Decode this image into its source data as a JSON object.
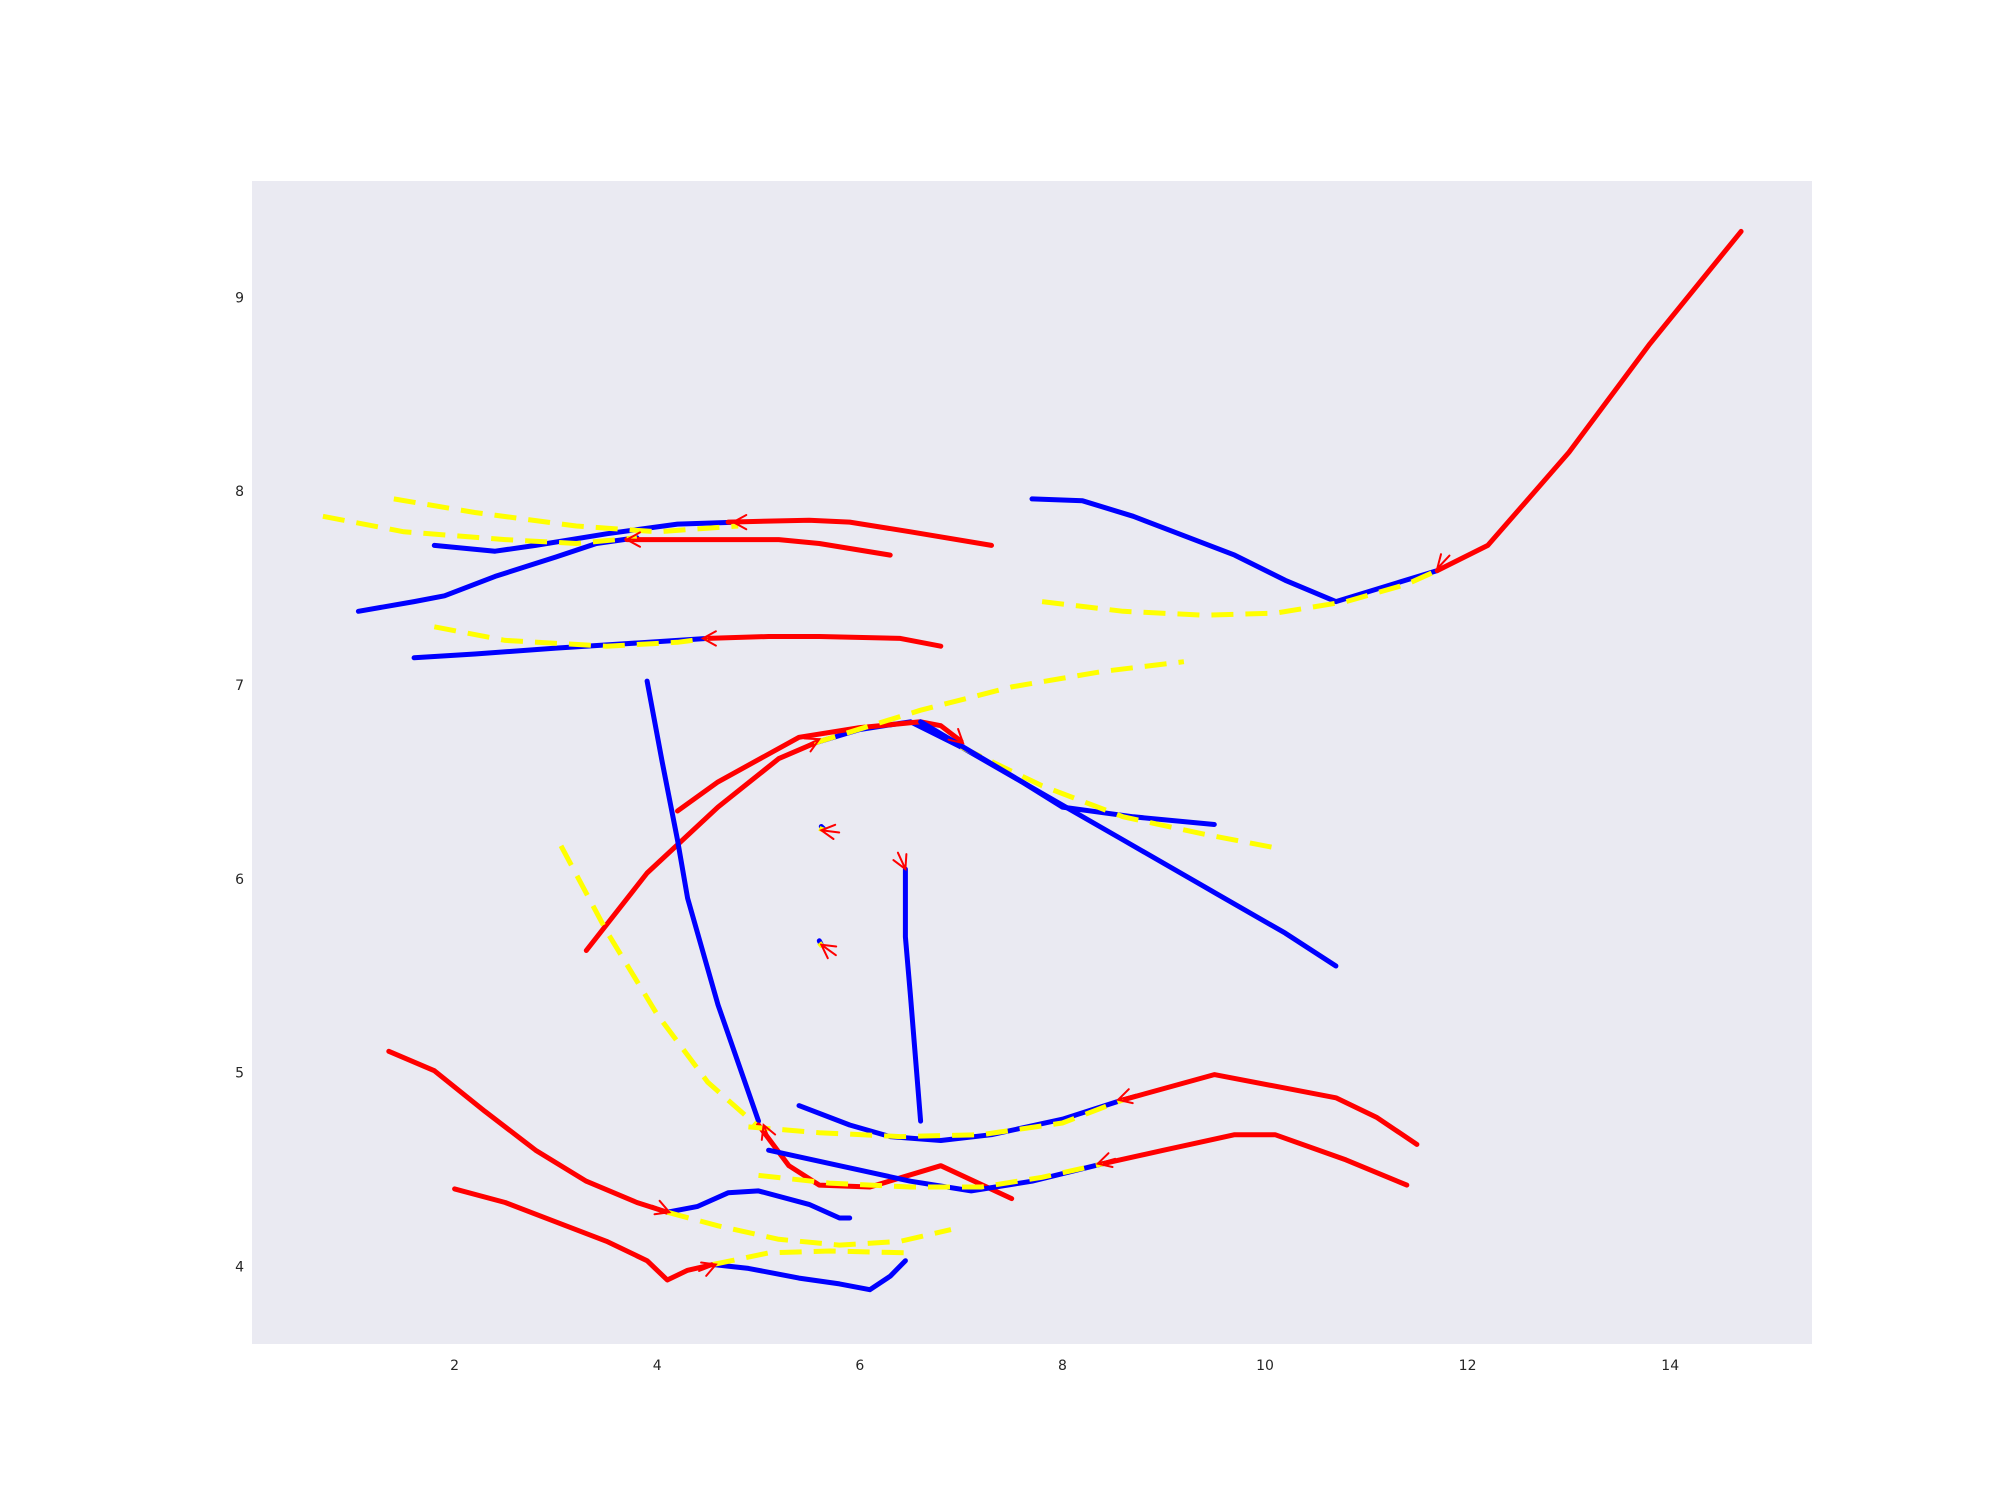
{
  "chart_data": {
    "type": "line",
    "title": "",
    "xlabel": "",
    "ylabel": "",
    "xlim": [
      0.0,
      15.4
    ],
    "ylim": [
      3.6,
      9.6
    ],
    "xticks": [
      2,
      4,
      6,
      8,
      10,
      12,
      14
    ],
    "yticks": [
      4,
      5,
      6,
      7,
      8,
      9
    ],
    "grid": false,
    "legend": "none",
    "colors": {
      "background": "#eaeaf2",
      "observed": "#0000ff",
      "predicted": "#ff0000",
      "candidate": "#ffff00"
    },
    "series": [
      {
        "role": "observed",
        "points": [
          [
            1.8,
            7.72
          ],
          [
            2.4,
            7.69
          ],
          [
            2.8,
            7.72
          ],
          [
            3.5,
            7.78
          ],
          [
            4.2,
            7.83
          ],
          [
            4.8,
            7.84
          ]
        ]
      },
      {
        "role": "predicted",
        "points": [
          [
            4.7,
            7.84
          ],
          [
            5.5,
            7.85
          ],
          [
            5.9,
            7.84
          ],
          [
            6.5,
            7.79
          ],
          [
            7.3,
            7.72
          ]
        ]
      },
      {
        "role": "candidate",
        "points": [
          [
            1.4,
            7.96
          ],
          [
            2.2,
            7.89
          ],
          [
            3.2,
            7.82
          ],
          [
            4.0,
            7.79
          ],
          [
            4.8,
            7.82
          ]
        ]
      },
      {
        "role": "observed",
        "points": [
          [
            1.05,
            7.38
          ],
          [
            1.6,
            7.43
          ],
          [
            1.9,
            7.46
          ],
          [
            2.4,
            7.56
          ],
          [
            3.0,
            7.66
          ],
          [
            3.4,
            7.73
          ],
          [
            3.8,
            7.76
          ]
        ]
      },
      {
        "role": "predicted",
        "points": [
          [
            3.7,
            7.75
          ],
          [
            4.6,
            7.75
          ],
          [
            5.2,
            7.75
          ],
          [
            5.6,
            7.73
          ],
          [
            6.3,
            7.67
          ]
        ]
      },
      {
        "role": "candidate",
        "points": [
          [
            0.7,
            7.87
          ],
          [
            1.5,
            7.79
          ],
          [
            2.5,
            7.75
          ],
          [
            3.2,
            7.73
          ],
          [
            3.8,
            7.76
          ]
        ]
      },
      {
        "role": "observed",
        "points": [
          [
            1.6,
            7.14
          ],
          [
            2.2,
            7.16
          ],
          [
            3.0,
            7.19
          ],
          [
            3.6,
            7.21
          ],
          [
            4.2,
            7.23
          ],
          [
            4.5,
            7.24
          ]
        ]
      },
      {
        "role": "predicted",
        "points": [
          [
            4.5,
            7.24
          ],
          [
            5.1,
            7.25
          ],
          [
            5.6,
            7.25
          ],
          [
            6.4,
            7.24
          ],
          [
            6.8,
            7.2
          ]
        ]
      },
      {
        "role": "candidate",
        "points": [
          [
            1.8,
            7.3
          ],
          [
            2.5,
            7.23
          ],
          [
            3.5,
            7.2
          ],
          [
            4.2,
            7.22
          ],
          [
            4.5,
            7.24
          ]
        ]
      },
      {
        "role": "observed",
        "points": [
          [
            7.7,
            7.96
          ],
          [
            8.2,
            7.95
          ],
          [
            8.7,
            7.87
          ],
          [
            9.2,
            7.77
          ],
          [
            9.7,
            7.67
          ],
          [
            10.2,
            7.54
          ],
          [
            10.7,
            7.43
          ],
          [
            11.2,
            7.51
          ],
          [
            11.7,
            7.59
          ]
        ]
      },
      {
        "role": "predicted",
        "points": [
          [
            11.7,
            7.59
          ],
          [
            12.2,
            7.72
          ],
          [
            13.0,
            8.2
          ],
          [
            13.8,
            8.76
          ],
          [
            14.7,
            9.34
          ]
        ]
      },
      {
        "role": "candidate",
        "points": [
          [
            7.8,
            7.43
          ],
          [
            8.6,
            7.38
          ],
          [
            9.4,
            7.36
          ],
          [
            10.1,
            7.37
          ],
          [
            10.8,
            7.43
          ],
          [
            11.4,
            7.52
          ],
          [
            11.7,
            7.59
          ]
        ]
      },
      {
        "role": "observed",
        "points": [
          [
            5.55,
            6.7
          ],
          [
            6.0,
            6.77
          ],
          [
            6.5,
            6.81
          ],
          [
            7.0,
            6.68
          ]
        ]
      },
      {
        "role": "predicted",
        "points": [
          [
            4.2,
            6.35
          ],
          [
            4.6,
            6.5
          ],
          [
            5.4,
            6.73
          ],
          [
            6.0,
            6.78
          ],
          [
            6.6,
            6.81
          ],
          [
            6.8,
            6.79
          ],
          [
            7.0,
            6.71
          ]
        ]
      },
      {
        "role": "predicted",
        "points": [
          [
            3.3,
            5.63
          ],
          [
            3.9,
            6.03
          ],
          [
            4.6,
            6.37
          ],
          [
            5.2,
            6.62
          ],
          [
            5.6,
            6.71
          ]
        ]
      },
      {
        "role": "candidate",
        "points": [
          [
            5.55,
            6.7
          ],
          [
            6.6,
            6.87
          ],
          [
            7.5,
            6.99
          ],
          [
            8.4,
            7.07
          ],
          [
            9.2,
            7.12
          ]
        ]
      },
      {
        "role": "observed",
        "points": [
          [
            7.0,
            6.68
          ],
          [
            7.6,
            6.5
          ],
          [
            8.0,
            6.37
          ],
          [
            8.7,
            6.32
          ],
          [
            9.5,
            6.28
          ]
        ]
      },
      {
        "role": "candidate",
        "points": [
          [
            7.0,
            6.68
          ],
          [
            7.8,
            6.48
          ],
          [
            8.6,
            6.32
          ],
          [
            9.4,
            6.23
          ],
          [
            10.1,
            6.16
          ]
        ]
      },
      {
        "role": "observed",
        "points": [
          [
            6.6,
            6.81
          ],
          [
            7.7,
            6.47
          ],
          [
            8.6,
            6.2
          ],
          [
            9.5,
            5.93
          ],
          [
            10.2,
            5.72
          ],
          [
            10.7,
            5.55
          ]
        ]
      },
      {
        "role": "observed",
        "points": [
          [
            3.9,
            7.02
          ],
          [
            4.05,
            6.6
          ],
          [
            4.2,
            6.2
          ],
          [
            4.3,
            5.9
          ],
          [
            4.6,
            5.35
          ],
          [
            5.0,
            4.75
          ]
        ]
      },
      {
        "role": "candidate",
        "points": [
          [
            3.05,
            6.17
          ],
          [
            3.5,
            5.73
          ],
          [
            4.0,
            5.3
          ],
          [
            4.5,
            4.95
          ],
          [
            5.0,
            4.72
          ]
        ]
      },
      {
        "role": "predicted",
        "points": [
          [
            5.0,
            4.73
          ],
          [
            5.3,
            4.52
          ],
          [
            5.6,
            4.42
          ],
          [
            6.1,
            4.41
          ],
          [
            6.8,
            4.52
          ],
          [
            7.5,
            4.35
          ]
        ]
      },
      {
        "role": "observed",
        "points": [
          [
            6.6,
            4.75
          ],
          [
            6.5,
            5.4
          ],
          [
            6.45,
            5.7
          ],
          [
            6.45,
            6.05
          ]
        ]
      },
      {
        "role": "observed",
        "points": [
          [
            5.4,
            4.83
          ],
          [
            5.9,
            4.73
          ],
          [
            6.3,
            4.67
          ],
          [
            6.8,
            4.65
          ],
          [
            7.3,
            4.68
          ],
          [
            8.0,
            4.76
          ],
          [
            8.6,
            4.86
          ]
        ]
      },
      {
        "role": "predicted",
        "points": [
          [
            8.6,
            4.86
          ],
          [
            9.5,
            4.99
          ],
          [
            10.2,
            4.92
          ],
          [
            10.7,
            4.87
          ],
          [
            11.1,
            4.77
          ],
          [
            11.5,
            4.63
          ]
        ]
      },
      {
        "role": "candidate",
        "points": [
          [
            4.9,
            4.72
          ],
          [
            5.6,
            4.69
          ],
          [
            6.4,
            4.67
          ],
          [
            7.2,
            4.68
          ],
          [
            8.0,
            4.74
          ],
          [
            8.6,
            4.86
          ]
        ]
      },
      {
        "role": "observed",
        "points": [
          [
            5.1,
            4.6
          ],
          [
            5.8,
            4.52
          ],
          [
            6.5,
            4.44
          ],
          [
            7.1,
            4.39
          ],
          [
            7.7,
            4.44
          ],
          [
            8.4,
            4.53
          ]
        ]
      },
      {
        "role": "predicted",
        "points": [
          [
            8.4,
            4.53
          ],
          [
            9.0,
            4.6
          ],
          [
            9.7,
            4.68
          ],
          [
            10.1,
            4.68
          ],
          [
            10.8,
            4.55
          ],
          [
            11.4,
            4.42
          ]
        ]
      },
      {
        "role": "candidate",
        "points": [
          [
            5.0,
            4.47
          ],
          [
            5.7,
            4.43
          ],
          [
            6.5,
            4.41
          ],
          [
            7.2,
            4.41
          ],
          [
            7.8,
            4.46
          ],
          [
            8.4,
            4.53
          ]
        ]
      },
      {
        "role": "observed",
        "points": [
          [
            4.1,
            4.28
          ],
          [
            4.4,
            4.31
          ],
          [
            4.7,
            4.38
          ],
          [
            5.0,
            4.39
          ],
          [
            5.5,
            4.32
          ],
          [
            5.8,
            4.25
          ],
          [
            5.9,
            4.25
          ]
        ]
      },
      {
        "role": "predicted",
        "points": [
          [
            1.35,
            5.11
          ],
          [
            1.8,
            5.01
          ],
          [
            2.3,
            4.8
          ],
          [
            2.8,
            4.6
          ],
          [
            3.3,
            4.44
          ],
          [
            3.8,
            4.33
          ],
          [
            4.1,
            4.28
          ]
        ]
      },
      {
        "role": "candidate",
        "points": [
          [
            4.1,
            4.28
          ],
          [
            4.6,
            4.21
          ],
          [
            5.2,
            4.14
          ],
          [
            5.8,
            4.11
          ],
          [
            6.4,
            4.13
          ],
          [
            6.9,
            4.19
          ]
        ]
      },
      {
        "role": "observed",
        "points": [
          [
            4.55,
            4.01
          ],
          [
            4.9,
            3.99
          ],
          [
            5.4,
            3.94
          ],
          [
            5.8,
            3.91
          ],
          [
            6.1,
            3.88
          ],
          [
            6.3,
            3.95
          ],
          [
            6.45,
            4.03
          ]
        ]
      },
      {
        "role": "predicted",
        "points": [
          [
            2.0,
            4.4
          ],
          [
            2.5,
            4.33
          ],
          [
            3.0,
            4.23
          ],
          [
            3.5,
            4.13
          ],
          [
            3.9,
            4.03
          ],
          [
            4.1,
            3.93
          ],
          [
            4.3,
            3.98
          ],
          [
            4.55,
            4.01
          ]
        ]
      },
      {
        "role": "candidate",
        "points": [
          [
            4.55,
            4.01
          ],
          [
            5.1,
            4.07
          ],
          [
            5.7,
            4.08
          ],
          [
            6.5,
            4.07
          ]
        ]
      },
      {
        "role": "observed",
        "points": [
          [
            5.62,
            6.27
          ],
          [
            5.64,
            6.26
          ]
        ]
      },
      {
        "role": "candidate",
        "points": [
          [
            5.6,
            6.26
          ],
          [
            5.65,
            6.25
          ]
        ]
      },
      {
        "role": "observed",
        "points": [
          [
            5.6,
            5.68
          ],
          [
            5.62,
            5.66
          ]
        ]
      },
      {
        "role": "candidate",
        "points": [
          [
            5.6,
            5.67
          ],
          [
            5.63,
            5.65
          ]
        ]
      }
    ],
    "arrows": [
      {
        "at": [
          4.75,
          7.84
        ],
        "from": [
          4.95,
          7.84
        ]
      },
      {
        "at": [
          3.7,
          7.75
        ],
        "from": [
          3.9,
          7.75
        ]
      },
      {
        "at": [
          4.45,
          7.24
        ],
        "from": [
          4.65,
          7.24
        ]
      },
      {
        "at": [
          11.7,
          7.6
        ],
        "from": [
          11.88,
          7.7
        ]
      },
      {
        "at": [
          5.6,
          6.72
        ],
        "from": [
          5.4,
          6.67
        ]
      },
      {
        "at": [
          7.02,
          6.7
        ],
        "from": [
          6.85,
          6.78
        ]
      },
      {
        "at": [
          5.05,
          4.73
        ],
        "from": [
          5.15,
          4.6
        ]
      },
      {
        "at": [
          8.55,
          4.86
        ],
        "from": [
          8.75,
          4.89
        ]
      },
      {
        "at": [
          8.35,
          4.53
        ],
        "from": [
          8.55,
          4.56
        ]
      },
      {
        "at": [
          4.12,
          4.28
        ],
        "from": [
          3.92,
          4.32
        ]
      },
      {
        "at": [
          4.58,
          4.01
        ],
        "from": [
          4.38,
          3.97
        ]
      },
      {
        "at": [
          5.62,
          6.25
        ],
        "from": [
          5.78,
          6.24
        ]
      },
      {
        "at": [
          6.45,
          6.05
        ],
        "from": [
          6.38,
          6.13
        ]
      },
      {
        "at": [
          5.62,
          5.66
        ],
        "from": [
          5.7,
          5.63
        ]
      }
    ]
  }
}
